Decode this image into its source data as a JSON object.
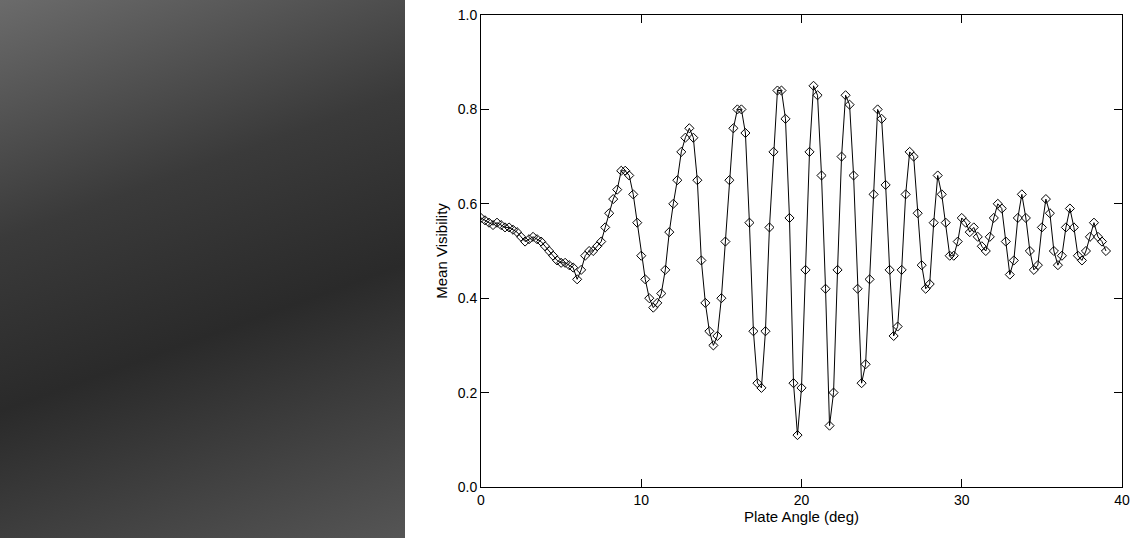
{
  "chart_data": {
    "type": "line",
    "x_label": "Plate Angle (deg)",
    "y_label": "Mean Visibility",
    "x": [
      0,
      0.25,
      0.5,
      0.75,
      1,
      1.25,
      1.5,
      1.75,
      2,
      2.25,
      2.5,
      2.75,
      3,
      3.25,
      3.5,
      3.75,
      4,
      4.25,
      4.5,
      4.75,
      5,
      5.25,
      5.5,
      5.75,
      6,
      6.25,
      6.5,
      6.75,
      7,
      7.25,
      7.5,
      7.75,
      8,
      8.25,
      8.5,
      8.75,
      9,
      9.25,
      9.5,
      9.75,
      10,
      10.25,
      10.5,
      10.75,
      11,
      11.25,
      11.5,
      11.75,
      12,
      12.25,
      12.5,
      12.75,
      13,
      13.25,
      13.5,
      13.75,
      14,
      14.25,
      14.5,
      14.75,
      15,
      15.25,
      15.5,
      15.75,
      16,
      16.25,
      16.5,
      16.75,
      17,
      17.25,
      17.5,
      17.75,
      18,
      18.25,
      18.5,
      18.75,
      19,
      19.25,
      19.5,
      19.75,
      20,
      20.25,
      20.5,
      20.75,
      21,
      21.25,
      21.5,
      21.75,
      22,
      22.25,
      22.5,
      22.75,
      23,
      23.25,
      23.5,
      23.75,
      24,
      24.25,
      24.5,
      24.75,
      25,
      25.25,
      25.5,
      25.75,
      26,
      26.25,
      26.5,
      26.75,
      27,
      27.25,
      27.5,
      27.75,
      28,
      28.25,
      28.5,
      28.75,
      29,
      29.25,
      29.5,
      29.75,
      30,
      30.25,
      30.5,
      30.75,
      31,
      31.25,
      31.5,
      31.75,
      32,
      32.25,
      32.5,
      32.75,
      33,
      33.25,
      33.5,
      33.75,
      34,
      34.25,
      34.5,
      34.75,
      35,
      35.25,
      35.5,
      35.75,
      36,
      36.25,
      36.5,
      36.75,
      37,
      37.25,
      37.5,
      37.75,
      38,
      38.25,
      38.5,
      38.75,
      39
    ],
    "values": [
      0.57,
      0.565,
      0.56,
      0.555,
      0.56,
      0.555,
      0.55,
      0.55,
      0.545,
      0.54,
      0.53,
      0.52,
      0.525,
      0.53,
      0.525,
      0.52,
      0.51,
      0.5,
      0.49,
      0.48,
      0.475,
      0.475,
      0.47,
      0.465,
      0.44,
      0.46,
      0.49,
      0.5,
      0.5,
      0.51,
      0.52,
      0.55,
      0.58,
      0.61,
      0.63,
      0.67,
      0.67,
      0.66,
      0.62,
      0.56,
      0.49,
      0.44,
      0.4,
      0.38,
      0.39,
      0.41,
      0.46,
      0.54,
      0.6,
      0.65,
      0.71,
      0.74,
      0.76,
      0.74,
      0.65,
      0.48,
      0.39,
      0.33,
      0.3,
      0.32,
      0.4,
      0.52,
      0.65,
      0.76,
      0.8,
      0.8,
      0.75,
      0.56,
      0.33,
      0.22,
      0.21,
      0.33,
      0.55,
      0.71,
      0.84,
      0.84,
      0.78,
      0.57,
      0.22,
      0.11,
      0.21,
      0.46,
      0.71,
      0.85,
      0.83,
      0.66,
      0.42,
      0.13,
      0.2,
      0.46,
      0.7,
      0.83,
      0.81,
      0.66,
      0.42,
      0.22,
      0.26,
      0.44,
      0.62,
      0.8,
      0.78,
      0.64,
      0.46,
      0.32,
      0.34,
      0.46,
      0.62,
      0.71,
      0.7,
      0.58,
      0.47,
      0.42,
      0.43,
      0.56,
      0.66,
      0.62,
      0.56,
      0.49,
      0.49,
      0.52,
      0.57,
      0.56,
      0.54,
      0.55,
      0.53,
      0.51,
      0.5,
      0.53,
      0.57,
      0.6,
      0.59,
      0.52,
      0.45,
      0.48,
      0.57,
      0.62,
      0.57,
      0.5,
      0.46,
      0.47,
      0.55,
      0.61,
      0.58,
      0.5,
      0.47,
      0.49,
      0.55,
      0.59,
      0.55,
      0.49,
      0.48,
      0.5,
      0.53,
      0.56,
      0.53,
      0.52,
      0.5
    ],
    "color": "#000000",
    "marker": "diamond-open",
    "line_style": "solid",
    "xlim": [
      0,
      40
    ],
    "xticks": [
      0,
      10,
      20,
      30,
      40
    ],
    "ylim": [
      0,
      1
    ],
    "yticks": [
      {
        "value": 0,
        "label": "0.0"
      },
      {
        "value": 0.2,
        "label": "0.2"
      },
      {
        "value": 0.4,
        "label": "0.4"
      },
      {
        "value": 0.6,
        "label": "0.6"
      },
      {
        "value": 0.8,
        "label": "0.8"
      },
      {
        "value": 1,
        "label": "1.0"
      }
    ],
    "grid": false
  }
}
